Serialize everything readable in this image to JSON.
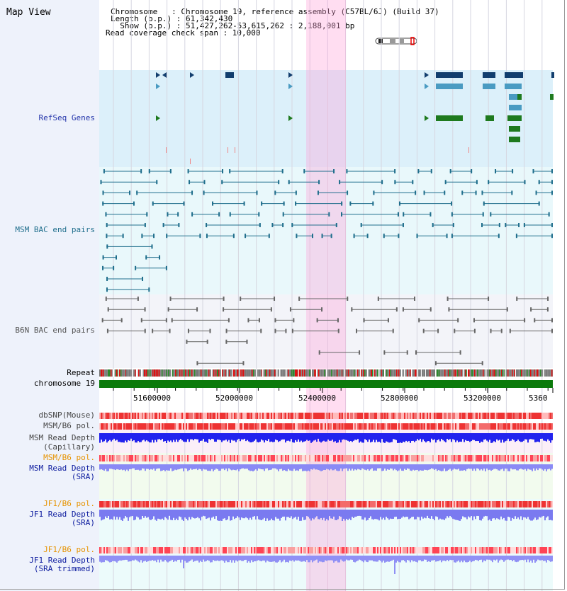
{
  "header": {
    "title": "Map View",
    "chromosome_line": "Chromosome   : Chromosome 19, reference assembly (C57BL/6J) (Build 37)",
    "length_line": "Length (b.p.) : 61,342,430",
    "show_line": "  Show (b.p.) : 51,427,262-53,615,262 : 2,188,001 bp",
    "span_line": "Read coverage check span : 10,000"
  },
  "tracks": {
    "refseq": "RefSeq Genes",
    "msm_bac": "MSM BAC end pairs",
    "b6n_bac": "B6N BAC end pairs",
    "repeat": "Repeat",
    "chromosome": "chromosome 19",
    "dbsnp": "dbSNP(Mouse)",
    "msm_b6_pol": "MSM/B6 pol.",
    "msm_depth_cap_1": "MSM Read Depth",
    "msm_depth_cap_2": "(Capillary)",
    "msm_b6_pol_2": "MSM/B6 pol.",
    "msm_depth_sra_1": "MSM Read Depth",
    "msm_depth_sra_2": "(SRA)",
    "jf1_b6_pol": "JF1/B6 pol.",
    "jf1_depth_sra_1": "JF1 Read Depth",
    "jf1_depth_sra_2": "(SRA)",
    "jf1_b6_pol_2": "JF1/B6 pol.",
    "jf1_depth_trim_1": "JF1 Read Depth",
    "jf1_depth_trim_2": "(SRA trimmed)"
  },
  "axis": {
    "ticks": [
      "51600000",
      "52000000",
      "52400000",
      "52800000",
      "53200000",
      "5360"
    ]
  },
  "colors": {
    "refseq_bg": "#dcf0fa",
    "msm_bg": "#e8f8fb",
    "b6n_bg": "#f4f4f8",
    "highlight": "#ffd8f0",
    "gene_dark": "#123e6e",
    "gene_light": "#4a9bc2",
    "gene_green": "#1e7a1e",
    "bac_teal": "#1f6e8c",
    "bac_gray": "#666666",
    "chromosome_bar": "#0b7a0b",
    "depth_blue": "#2222ee",
    "depth_lavender": "#8888ff"
  }
}
